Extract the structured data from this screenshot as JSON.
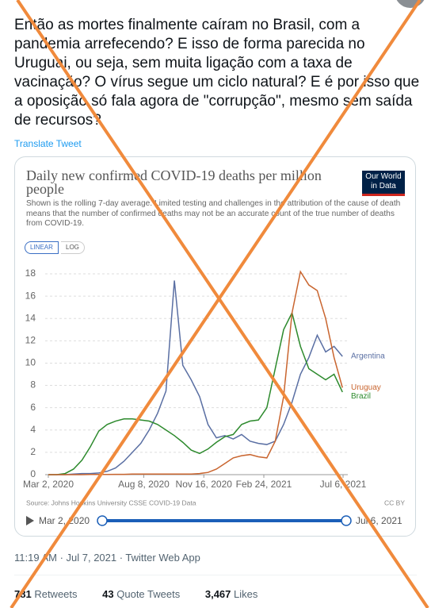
{
  "tweet": {
    "text": "Então as mortes finalmente caíram no Brasil, com a pandemia arrefecendo? E isso de forma parecida no Uruguai, ou seja, sem muita ligação com a taxa de vacinação? O vírus segue um ciclo natural? E é por isso que a oposição só fala agora de \"corrupção\", mesmo sem saída de recursos?",
    "translate": "Translate Tweet",
    "timestamp": "11:19 AM · Jul 7, 2021 · Twitter Web App",
    "stats": [
      {
        "count": "781",
        "label": "Retweets"
      },
      {
        "count": "43",
        "label": "Quote Tweets"
      },
      {
        "count": "3,467",
        "label": "Likes"
      }
    ]
  },
  "chart_data": {
    "type": "line",
    "title": "Daily new confirmed COVID-19 deaths per million people",
    "subtitle": "Shown is the rolling 7-day average. Limited testing and challenges in the attribution of the cause of death means that the number of confirmed deaths may not be an accurate count of the true number of deaths from COVID-19.",
    "logo": [
      "Our World",
      "in Data"
    ],
    "scale_buttons": [
      "LINEAR",
      "LOG"
    ],
    "x": [
      "2020-03-02",
      "2020-03-16",
      "2020-03-30",
      "2020-04-13",
      "2020-04-27",
      "2020-05-11",
      "2020-05-25",
      "2020-06-08",
      "2020-06-22",
      "2020-07-06",
      "2020-07-20",
      "2020-08-03",
      "2020-08-17",
      "2020-08-31",
      "2020-09-14",
      "2020-09-28",
      "2020-10-12",
      "2020-10-26",
      "2020-11-09",
      "2020-11-23",
      "2020-12-07",
      "2020-12-21",
      "2021-01-04",
      "2021-01-18",
      "2021-02-01",
      "2021-02-15",
      "2021-03-01",
      "2021-03-15",
      "2021-03-29",
      "2021-04-12",
      "2021-04-26",
      "2021-05-10",
      "2021-05-24",
      "2021-06-07",
      "2021-06-21",
      "2021-07-05"
    ],
    "series": [
      {
        "name": "Argentina",
        "color": "#5a6fa3",
        "values": [
          0,
          0,
          0,
          0.05,
          0.1,
          0.1,
          0.15,
          0.3,
          0.6,
          1.2,
          2.0,
          2.8,
          4.0,
          5.5,
          7.5,
          17.4,
          9.8,
          8.5,
          7.0,
          4.5,
          3.3,
          3.5,
          3.2,
          3.6,
          3.0,
          2.8,
          2.7,
          3.0,
          4.5,
          6.5,
          9.0,
          10.5,
          12.5,
          11.0,
          11.5,
          10.6
        ]
      },
      {
        "name": "Brazil",
        "color": "#2d8a2d",
        "values": [
          0,
          0,
          0.1,
          0.5,
          1.3,
          2.5,
          3.9,
          4.5,
          4.8,
          5.0,
          5.0,
          4.9,
          4.8,
          4.5,
          4.0,
          3.5,
          2.9,
          2.2,
          1.9,
          2.3,
          2.9,
          3.4,
          3.6,
          4.5,
          4.8,
          4.9,
          6.0,
          9.5,
          13.0,
          14.5,
          11.5,
          9.5,
          9.0,
          8.5,
          9.0,
          7.4
        ]
      },
      {
        "name": "Uruguay",
        "color": "#c9652f",
        "values": [
          0,
          0,
          0,
          0,
          0,
          0.02,
          0.02,
          0.02,
          0.03,
          0.03,
          0.05,
          0.05,
          0.05,
          0.05,
          0.05,
          0.05,
          0.05,
          0.05,
          0.1,
          0.2,
          0.5,
          1.0,
          1.5,
          1.7,
          1.8,
          1.6,
          1.5,
          3.0,
          7.0,
          14.5,
          18.2,
          17.0,
          16.5,
          14.0,
          10.5,
          7.8
        ]
      }
    ],
    "ylim": [
      0,
      18
    ],
    "yticks": [
      0,
      2,
      4,
      6,
      8,
      10,
      12,
      14,
      16,
      18
    ],
    "xlim": [
      "2020-03-02",
      "2021-07-06"
    ],
    "xticks": [
      {
        "value": "2020-03-02",
        "label": "Mar 2, 2020"
      },
      {
        "value": "2020-08-08",
        "label": "Aug 8, 2020"
      },
      {
        "value": "2020-11-16",
        "label": "Nov 16, 2020"
      },
      {
        "value": "2021-02-24",
        "label": "Feb 24, 2021"
      },
      {
        "value": "2021-07-06",
        "label": "Jul 6, 2021"
      }
    ],
    "grid": true,
    "source": "Source: Johns Hopkins University CSSE COVID-19 Data",
    "license": "CC BY",
    "timeline": [
      "Mar 2, 2020",
      "Jul 6, 2021"
    ]
  }
}
